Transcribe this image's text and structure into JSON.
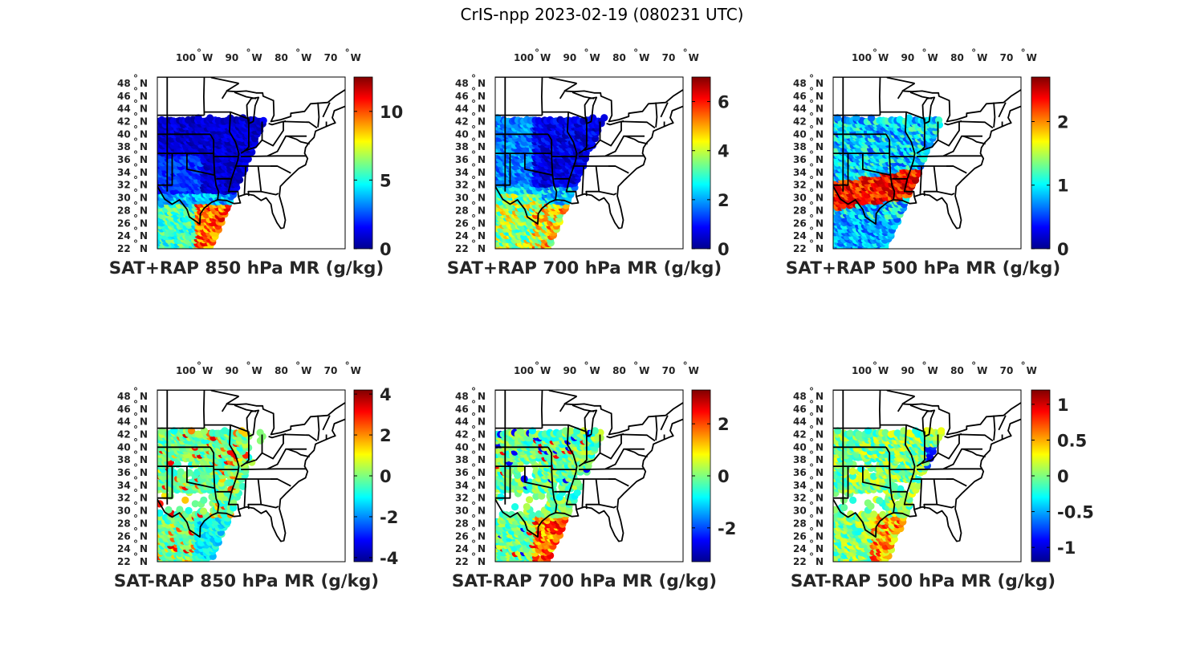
{
  "title": "CrIS-npp 2023-02-19 (080231 UTC)",
  "lon_ticks": [
    "100",
    "90",
    "80",
    "70"
  ],
  "lon_hemisphere": "W",
  "lat_ticks": [
    "48",
    "46",
    "44",
    "42",
    "40",
    "38",
    "36",
    "34",
    "32",
    "30",
    "28",
    "26",
    "24",
    "22"
  ],
  "lat_hemisphere": "N",
  "degree_symbol": "°",
  "colormap": "jet",
  "map": {
    "lon_range": [
      -106,
      -68
    ],
    "lat_range": [
      22,
      49
    ],
    "region": "Eastern United States with state boundaries"
  },
  "panels": [
    {
      "id": "sat-rap-850",
      "caption": "SAT+RAP 850 hPa MR (g/kg)",
      "colorbar": {
        "ticks": [
          "0",
          "5",
          "10"
        ],
        "tick_values": [
          0,
          5,
          10
        ],
        "range": [
          0,
          12.5
        ]
      },
      "field": "low values (~0–1) across the central/northern swath, 3–6 over Texas/Gulf coast, 8–11 over the Gulf of Mexico"
    },
    {
      "id": "sat-rap-700",
      "caption": "SAT+RAP 700 hPa MR (g/kg)",
      "colorbar": {
        "ticks": [
          "0",
          "2",
          "4",
          "6"
        ],
        "tick_values": [
          0,
          2,
          4,
          6
        ],
        "range": [
          0,
          7
        ]
      },
      "field": "low values (~0–1) north and east, 2–4 over Texas, 3–6 over the Gulf"
    },
    {
      "id": "sat-rap-500",
      "caption": "SAT+RAP 500 hPa MR (g/kg)",
      "colorbar": {
        "ticks": [
          "0",
          "1",
          "2"
        ],
        "tick_values": [
          0,
          1,
          2
        ],
        "range": [
          0,
          2.7
        ]
      },
      "field": "0.5–1 in the north, a band of 2–2.5 across the Gulf coast and Southeast, 0.5–1 over the Gulf"
    },
    {
      "id": "sat-minus-rap-850",
      "caption": "SAT-RAP 850 hPa MR (g/kg)",
      "colorbar": {
        "ticks": [
          "4",
          "2",
          "0",
          "-2",
          "-4"
        ],
        "tick_values": [
          4,
          2,
          0,
          -2,
          -4
        ],
        "range": [
          -4.2,
          4.2
        ]
      },
      "field": "mostly -1 to 0 inland with scattered +1 to +3, -2 to -1 over the Gulf"
    },
    {
      "id": "sat-minus-rap-700",
      "caption": "SAT-RAP 700 hPa MR (g/kg)",
      "colorbar": {
        "ticks": [
          "2",
          "0",
          "-2"
        ],
        "tick_values": [
          2,
          0,
          -2
        ],
        "range": [
          -3.3,
          3.3
        ]
      },
      "field": "near 0 inland, positive +1 to +3 over the Gulf"
    },
    {
      "id": "sat-minus-rap-500",
      "caption": "SAT-RAP 500 hPa MR (g/kg)",
      "colorbar": {
        "ticks": [
          "1",
          "0.5",
          "0",
          "-0.5",
          "-1"
        ],
        "tick_values": [
          1,
          0.5,
          0,
          -0.5,
          -1
        ],
        "range": [
          -1.2,
          1.2
        ]
      },
      "field": "near 0 with a negative cluster (~-1) in Ohio Valley, positive +0.5 to +1 over the Gulf and Carolina coast"
    }
  ]
}
